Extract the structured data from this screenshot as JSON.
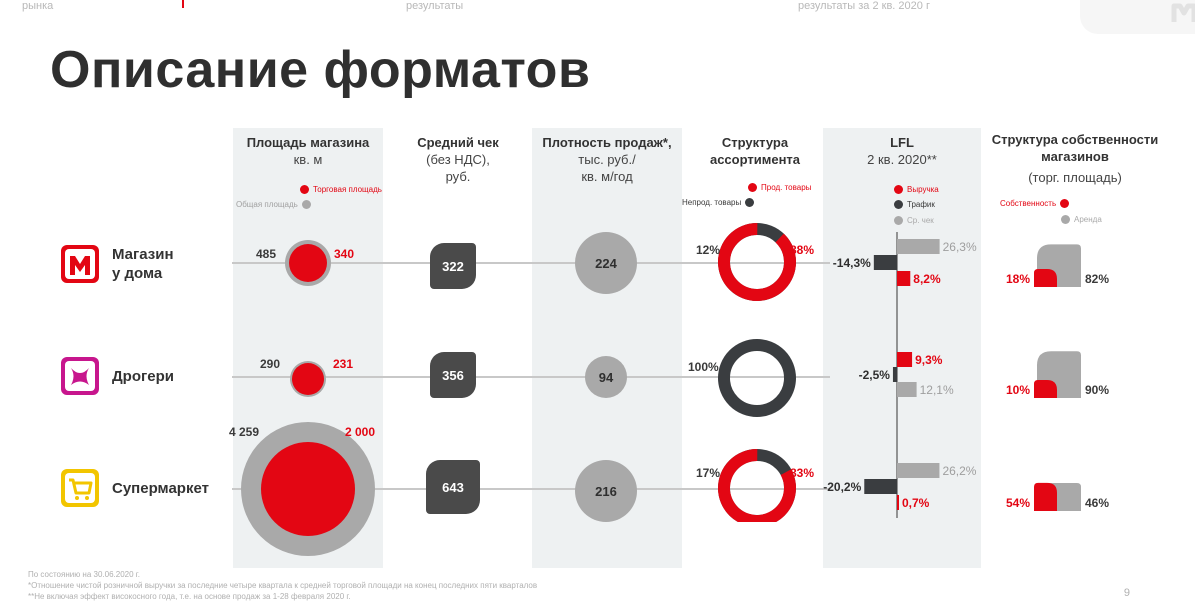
{
  "nav": {
    "item1": "рынка",
    "item2": "результаты",
    "item3": "результаты за 2 кв. 2020 г"
  },
  "title": "Описание форматов",
  "headers": {
    "area": {
      "bold": "Площадь магазина",
      "sub": "кв. м"
    },
    "check": {
      "bold": "Средний чек",
      "sub1": "(без НДС),",
      "sub2": "руб."
    },
    "density": {
      "bold": "Плотность продаж*,",
      "sub1": "тыс. руб./",
      "sub2": "кв. м/год"
    },
    "assortment": {
      "bold1": "Структура",
      "bold2": "ассортимента"
    },
    "lfl": {
      "bold": "LFL",
      "sub": "2 кв. 2020**"
    },
    "ownership": {
      "bold1": "Структура собственности",
      "bold2": "магазинов",
      "sub": "(торг. площадь)"
    }
  },
  "legends": {
    "area": {
      "selling": "Торговая площадь",
      "total": "Общая площадь"
    },
    "assortment": {
      "food": "Прод. товары",
      "nonfood": "Непрод. товары"
    },
    "lfl": {
      "revenue": "Выручка",
      "traffic": "Трафик",
      "avgcheck": "Ср. чек"
    },
    "ownership": {
      "own": "Собственность",
      "rent": "Аренда"
    }
  },
  "colors": {
    "red": "#e30613",
    "dark": "#3a3d40",
    "grey": "#a9a9a9",
    "band": "#eef1f2",
    "magenta": "#c7168d",
    "yellow": "#f2c500"
  },
  "chart_data": {
    "type": "table",
    "rows": [
      {
        "key": "home",
        "name_line1": "Магазин",
        "name_line2": "у дома",
        "icon": "magnit-logo-icon",
        "total_area": "485",
        "selling_area": "340",
        "total_area_value": 485,
        "selling_area_value": 340,
        "avg_check": "322",
        "sales_density": "224",
        "nonfood_pct": 12,
        "food_pct": 88,
        "nonfood_label": "12%",
        "food_label": "88%",
        "lfl_traffic": -14.3,
        "lfl_revenue": 8.2,
        "lfl_avgcheck": 26.3,
        "lfl_traffic_label": "-14,3%",
        "lfl_revenue_label": "8,2%",
        "lfl_avgcheck_label": "26,3%",
        "own_pct": 18,
        "rent_pct": 82,
        "own_label": "18%",
        "rent_label": "82%"
      },
      {
        "key": "drogerie",
        "name_line1": "Дрогери",
        "name_line2": "",
        "icon": "cosmetic-logo-icon",
        "total_area": "290",
        "selling_area": "231",
        "total_area_value": 290,
        "selling_area_value": 231,
        "avg_check": "356",
        "sales_density": "94",
        "nonfood_pct": 100,
        "food_pct": 0,
        "nonfood_label": "100%",
        "food_label": "",
        "lfl_traffic": -2.5,
        "lfl_revenue": 9.3,
        "lfl_avgcheck": 12.1,
        "lfl_traffic_label": "-2,5%",
        "lfl_revenue_label": "9,3%",
        "lfl_avgcheck_label": "12,1%",
        "own_pct": 10,
        "rent_pct": 90,
        "own_label": "10%",
        "rent_label": "90%"
      },
      {
        "key": "supermarket",
        "name_line1": "Супермаркет",
        "name_line2": "",
        "icon": "cart-logo-icon",
        "total_area": "4 259",
        "selling_area": "2 000",
        "total_area_value": 4259,
        "selling_area_value": 2000,
        "avg_check": "643",
        "sales_density": "216",
        "nonfood_pct": 17,
        "food_pct": 83,
        "nonfood_label": "17%",
        "food_label": "83%",
        "lfl_traffic": -20.2,
        "lfl_revenue": 0.7,
        "lfl_avgcheck": 26.2,
        "lfl_traffic_label": "-20,2%",
        "lfl_revenue_label": "0,7%",
        "lfl_avgcheck_label": "26,2%",
        "own_pct": 54,
        "rent_pct": 46,
        "own_label": "54%",
        "rent_label": "46%"
      }
    ]
  },
  "footnotes": {
    "line1": "По состоянию на 30.06.2020 г.",
    "line2": "*Отношение чистой розничной выручки за последние четыре квартала к средней торговой площади на конец последних пяти кварталов",
    "line3": "**Не включая эффект високосного года, т.е. на основе продаж за 1-28 февраля 2020 г."
  },
  "page_number": "9"
}
